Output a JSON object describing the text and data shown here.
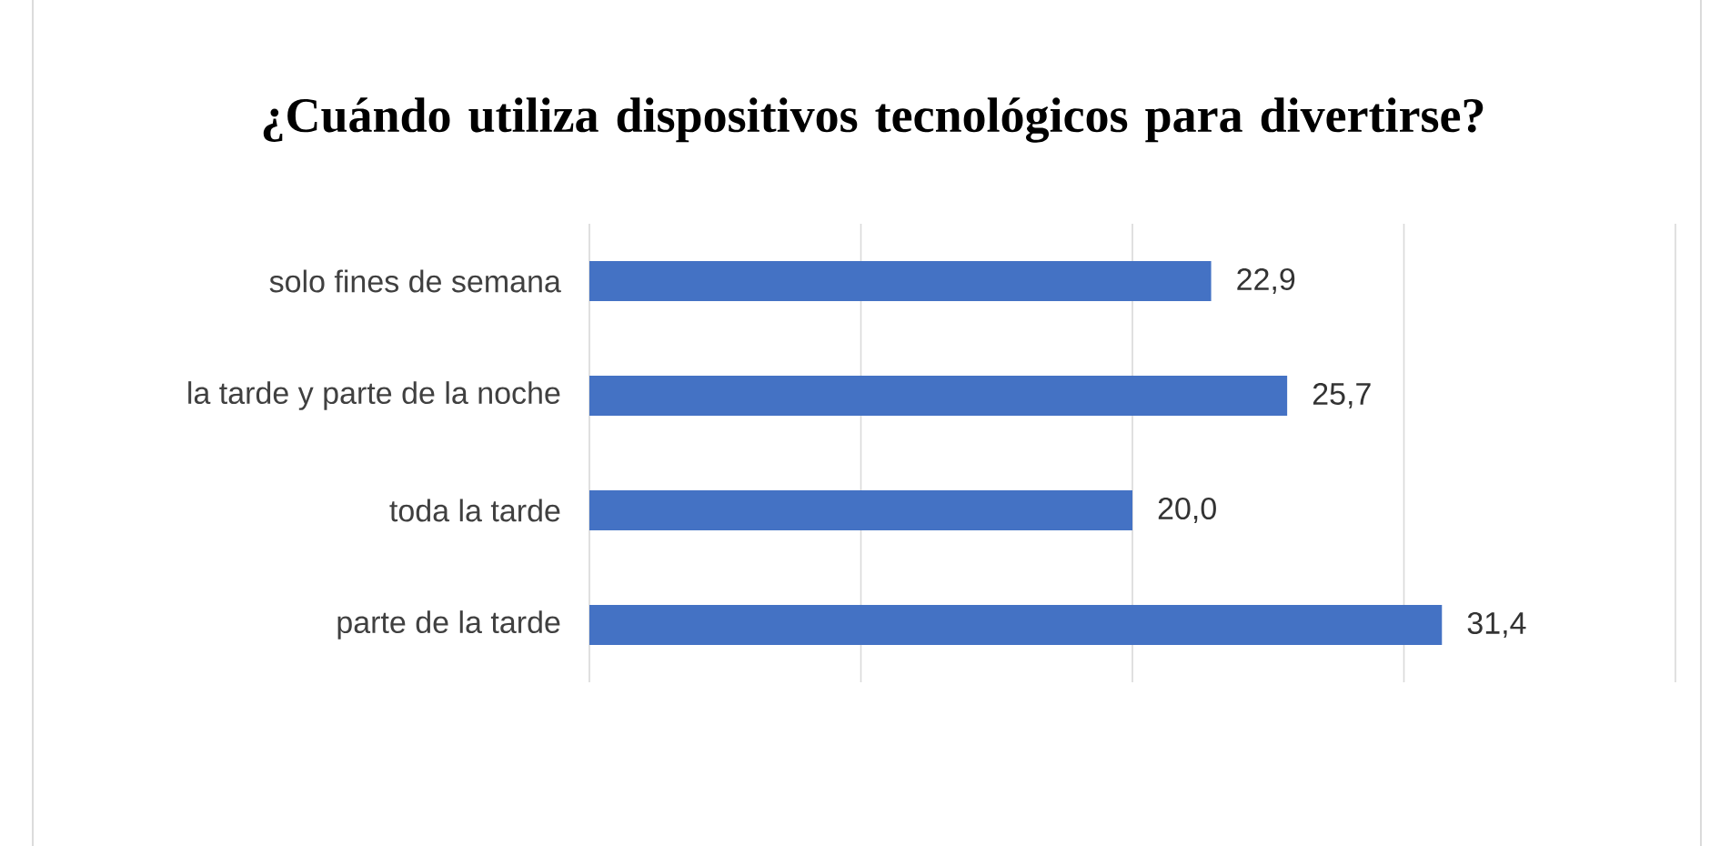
{
  "chart_data": {
    "type": "bar",
    "orientation": "horizontal",
    "title": "¿Cuándo utiliza dispositivos tecnológicos para divertirse?",
    "categories": [
      "solo fines de semana",
      "la tarde y parte de la noche",
      "toda la tarde",
      "parte de la tarde"
    ],
    "values": [
      22.9,
      25.7,
      20.0,
      31.4
    ],
    "color": "#4472c4",
    "value_labels": [
      "22,9",
      "25,7",
      "20,0",
      "31,4"
    ],
    "xlim": [
      0,
      40
    ],
    "xticks": [
      {
        "value": 0,
        "label": null
      },
      {
        "value": 10,
        "label": null
      },
      {
        "value": 20,
        "label": null
      },
      {
        "value": 30,
        "label": null
      },
      {
        "value": 40,
        "label": null
      }
    ],
    "tick_labels": "y",
    "grid": "x"
  }
}
